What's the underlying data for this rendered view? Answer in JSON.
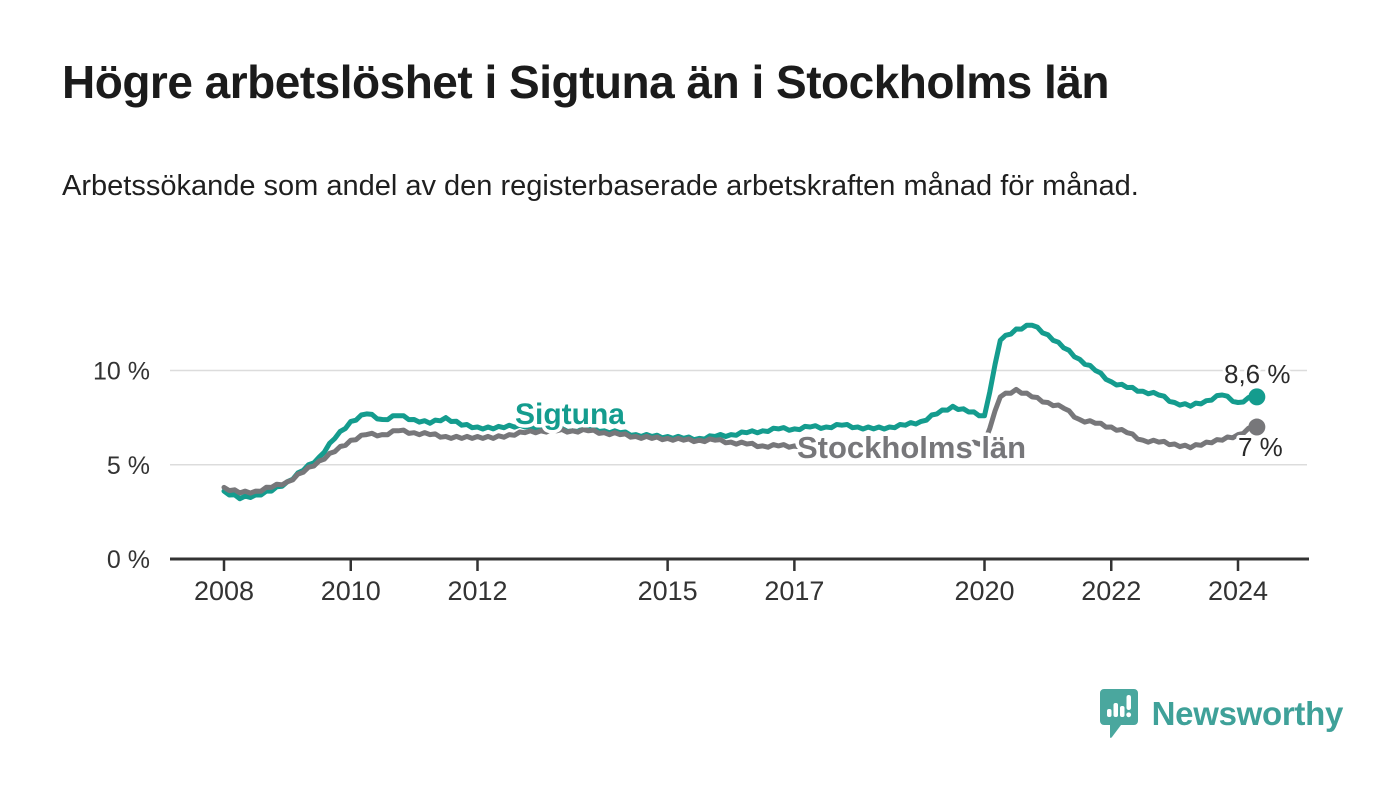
{
  "header": {
    "title": "Högre arbetslöshet i Sigtuna än i Stockholms län",
    "subtitle": "Arbetssökande som andel av den registerbaserade arbetskraften månad för månad."
  },
  "footer": {
    "brand": "Newsworthy",
    "logo_icon": "bar-chart-speech-bubble-icon"
  },
  "colors": {
    "sigtuna": "#149C8E",
    "stockholm": "#77777A",
    "grid": "#DCDCDC",
    "axis": "#333333",
    "value_label": "#2A2A2A",
    "brand": "#3FA199",
    "brand_icon": "#4AA79E"
  },
  "chart_data": {
    "type": "line",
    "title": "Högre arbetslöshet i Sigtuna än i Stockholms län",
    "xlabel": "",
    "ylabel": "",
    "grid": "horizontal",
    "legend_position": "inline-labels",
    "x_axis": {
      "tick_labels": [
        "2008",
        "2010",
        "2012",
        "2015",
        "2017",
        "2020",
        "2022",
        "2024"
      ],
      "tick_values": [
        2008,
        2010,
        2012,
        2015,
        2017,
        2020,
        2022,
        2024
      ],
      "range": [
        2007.1,
        2025.1
      ]
    },
    "y_axis": {
      "tick_labels": [
        "0 %",
        "5 %",
        "10 %"
      ],
      "tick_values": [
        0,
        5,
        10
      ],
      "range": [
        0,
        13.2
      ],
      "unit": "%"
    },
    "x": [
      2008.0,
      2008.25,
      2008.5,
      2008.75,
      2009.0,
      2009.25,
      2009.5,
      2009.75,
      2010.0,
      2010.25,
      2010.5,
      2010.75,
      2011.0,
      2011.25,
      2011.5,
      2011.75,
      2012.0,
      2012.25,
      2012.5,
      2012.75,
      2013.0,
      2013.25,
      2013.5,
      2013.75,
      2014.0,
      2014.25,
      2014.5,
      2014.75,
      2015.0,
      2015.25,
      2015.5,
      2015.75,
      2016.0,
      2016.25,
      2016.5,
      2016.75,
      2017.0,
      2017.25,
      2017.5,
      2017.75,
      2018.0,
      2018.25,
      2018.5,
      2018.75,
      2019.0,
      2019.25,
      2019.5,
      2019.75,
      2020.0,
      2020.25,
      2020.5,
      2020.75,
      2021.0,
      2021.25,
      2021.5,
      2021.75,
      2022.0,
      2022.25,
      2022.5,
      2022.75,
      2023.0,
      2023.25,
      2023.5,
      2023.75,
      2024.0,
      2024.25
    ],
    "series": [
      {
        "name": "Sigtuna",
        "color": "#149C8E",
        "end_label": "8,6 %",
        "end_value": 8.6,
        "values": [
          3.6,
          3.2,
          3.4,
          3.6,
          4.1,
          4.7,
          5.4,
          6.4,
          7.3,
          7.7,
          7.4,
          7.6,
          7.4,
          7.2,
          7.5,
          7.1,
          7.0,
          6.9,
          7.1,
          7.0,
          6.9,
          6.9,
          6.8,
          6.9,
          6.8,
          6.7,
          6.6,
          6.5,
          6.5,
          6.4,
          6.4,
          6.5,
          6.6,
          6.7,
          6.8,
          6.9,
          6.9,
          7.0,
          7.0,
          7.1,
          7.0,
          6.9,
          7.0,
          7.1,
          7.3,
          7.7,
          8.1,
          7.8,
          7.6,
          11.6,
          12.2,
          12.4,
          11.9,
          11.2,
          10.6,
          10.0,
          9.4,
          9.1,
          8.9,
          8.7,
          8.3,
          8.1,
          8.4,
          8.7,
          8.3,
          8.6
        ]
      },
      {
        "name": "Stockholms län",
        "color": "#77777A",
        "end_label": "7 %",
        "end_value": 7.0,
        "values": [
          3.8,
          3.5,
          3.6,
          3.8,
          4.1,
          4.6,
          5.2,
          5.7,
          6.3,
          6.6,
          6.6,
          6.8,
          6.7,
          6.6,
          6.5,
          6.4,
          6.5,
          6.4,
          6.6,
          6.7,
          6.8,
          6.8,
          6.8,
          6.8,
          6.7,
          6.6,
          6.5,
          6.4,
          6.4,
          6.3,
          6.3,
          6.3,
          6.2,
          6.1,
          6.0,
          6.0,
          6.0,
          6.0,
          6.0,
          6.0,
          6.0,
          5.9,
          5.9,
          5.9,
          5.9,
          6.0,
          6.1,
          6.1,
          6.2,
          8.6,
          9.0,
          8.6,
          8.3,
          8.0,
          7.4,
          7.2,
          7.0,
          6.7,
          6.3,
          6.2,
          6.1,
          5.9,
          6.2,
          6.3,
          6.6,
          7.0
        ]
      }
    ]
  }
}
